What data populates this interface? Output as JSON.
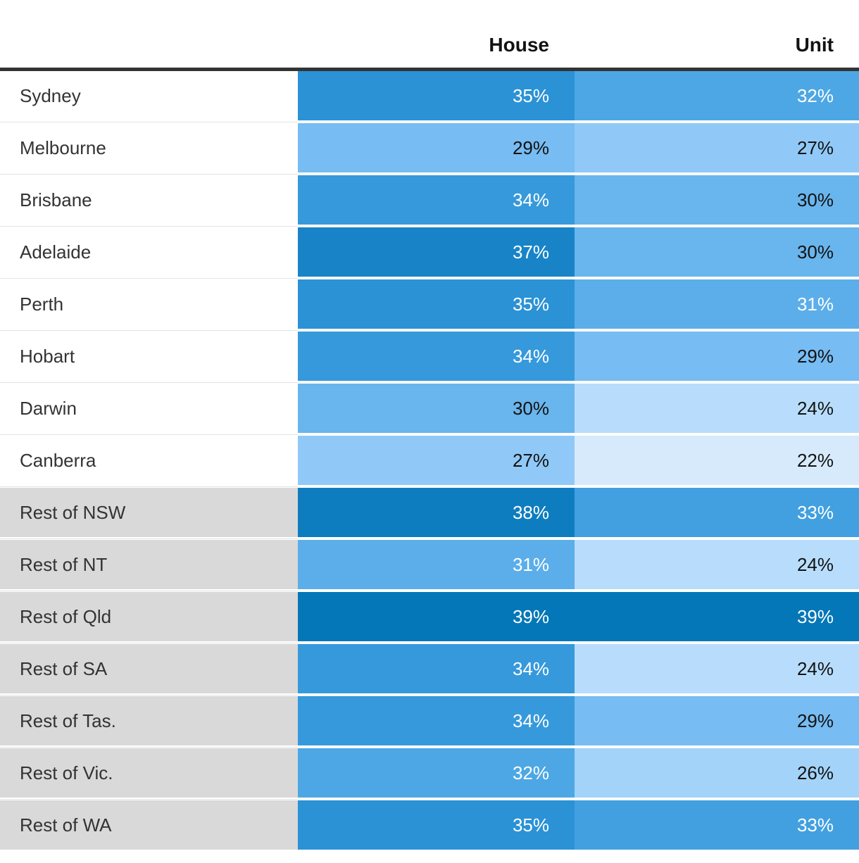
{
  "colors": {
    "header_text": "#121212",
    "label_text": "#333333",
    "top_rule": "#333333",
    "rest_label_bg": "#d9d9d9",
    "capital_label_bg": "#ffffff",
    "value_text_light": "#ffffff",
    "value_text_dark": "#121212",
    "scale_min_color": "#d7eafc",
    "scale_max_color": "#0477b8"
  },
  "table": {
    "columns": [
      "House",
      "Unit"
    ],
    "rows": [
      {
        "label": "Sydney",
        "group": "capital",
        "cells": [
          {
            "text": "35%",
            "bg": "#2b92d6",
            "fg": "#ffffff"
          },
          {
            "text": "32%",
            "bg": "#4da7e4",
            "fg": "#ffffff"
          }
        ]
      },
      {
        "label": "Melbourne",
        "group": "capital",
        "cells": [
          {
            "text": "29%",
            "bg": "#77bcf2",
            "fg": "#121212"
          },
          {
            "text": "27%",
            "bg": "#90c9f7",
            "fg": "#121212"
          }
        ]
      },
      {
        "label": "Brisbane",
        "group": "capital",
        "cells": [
          {
            "text": "34%",
            "bg": "#3699db",
            "fg": "#ffffff"
          },
          {
            "text": "30%",
            "bg": "#69b5ed",
            "fg": "#121212"
          }
        ]
      },
      {
        "label": "Adelaide",
        "group": "capital",
        "cells": [
          {
            "text": "37%",
            "bg": "#1884c7",
            "fg": "#ffffff"
          },
          {
            "text": "30%",
            "bg": "#69b5ed",
            "fg": "#121212"
          }
        ]
      },
      {
        "label": "Perth",
        "group": "capital",
        "cells": [
          {
            "text": "35%",
            "bg": "#2b92d6",
            "fg": "#ffffff"
          },
          {
            "text": "31%",
            "bg": "#5baee9",
            "fg": "#ffffff"
          }
        ]
      },
      {
        "label": "Hobart",
        "group": "capital",
        "cells": [
          {
            "text": "34%",
            "bg": "#3699db",
            "fg": "#ffffff"
          },
          {
            "text": "29%",
            "bg": "#77bcf2",
            "fg": "#121212"
          }
        ]
      },
      {
        "label": "Darwin",
        "group": "capital",
        "cells": [
          {
            "text": "30%",
            "bg": "#69b5ed",
            "fg": "#121212"
          },
          {
            "text": "24%",
            "bg": "#b8ddfc",
            "fg": "#121212"
          }
        ]
      },
      {
        "label": "Canberra",
        "group": "capital",
        "cells": [
          {
            "text": "27%",
            "bg": "#90c9f7",
            "fg": "#121212"
          },
          {
            "text": "22%",
            "bg": "#d7eafc",
            "fg": "#121212"
          }
        ]
      },
      {
        "label": "Rest of NSW",
        "group": "rest",
        "cells": [
          {
            "text": "38%",
            "bg": "#0e7dbf",
            "fg": "#ffffff"
          },
          {
            "text": "33%",
            "bg": "#42a0e0",
            "fg": "#ffffff"
          }
        ]
      },
      {
        "label": "Rest of NT",
        "group": "rest",
        "cells": [
          {
            "text": "31%",
            "bg": "#5baee9",
            "fg": "#ffffff"
          },
          {
            "text": "24%",
            "bg": "#b8ddfc",
            "fg": "#121212"
          }
        ]
      },
      {
        "label": "Rest of Qld",
        "group": "rest",
        "cells": [
          {
            "text": "39%",
            "bg": "#0477b8",
            "fg": "#ffffff"
          },
          {
            "text": "39%",
            "bg": "#0477b8",
            "fg": "#ffffff"
          }
        ]
      },
      {
        "label": "Rest of SA",
        "group": "rest",
        "cells": [
          {
            "text": "34%",
            "bg": "#3699db",
            "fg": "#ffffff"
          },
          {
            "text": "24%",
            "bg": "#b8ddfc",
            "fg": "#121212"
          }
        ]
      },
      {
        "label": "Rest of Tas.",
        "group": "rest",
        "cells": [
          {
            "text": "34%",
            "bg": "#3699db",
            "fg": "#ffffff"
          },
          {
            "text": "29%",
            "bg": "#77bcf2",
            "fg": "#121212"
          }
        ]
      },
      {
        "label": "Rest of Vic.",
        "group": "rest",
        "cells": [
          {
            "text": "32%",
            "bg": "#4da7e4",
            "fg": "#ffffff"
          },
          {
            "text": "26%",
            "bg": "#a3d3f9",
            "fg": "#121212"
          }
        ]
      },
      {
        "label": "Rest of WA",
        "group": "rest",
        "cells": [
          {
            "text": "35%",
            "bg": "#2b92d6",
            "fg": "#ffffff"
          },
          {
            "text": "33%",
            "bg": "#42a0e0",
            "fg": "#ffffff"
          }
        ]
      }
    ]
  },
  "chart_data": {
    "type": "heatmap",
    "categories": [
      "Sydney",
      "Melbourne",
      "Brisbane",
      "Adelaide",
      "Perth",
      "Hobart",
      "Darwin",
      "Canberra",
      "Rest of NSW",
      "Rest of NT",
      "Rest of Qld",
      "Rest of SA",
      "Rest of Tas.",
      "Rest of Vic.",
      "Rest of WA"
    ],
    "series": [
      {
        "name": "House",
        "values": [
          35,
          29,
          34,
          37,
          35,
          34,
          30,
          27,
          38,
          31,
          39,
          34,
          34,
          32,
          35
        ]
      },
      {
        "name": "Unit",
        "values": [
          32,
          27,
          30,
          30,
          31,
          29,
          24,
          22,
          33,
          24,
          39,
          24,
          29,
          26,
          33
        ]
      }
    ],
    "value_format": "percent",
    "value_range": [
      22,
      39
    ],
    "legend_position": "none",
    "grid": false,
    "title": "",
    "xlabel": "",
    "ylabel": ""
  }
}
